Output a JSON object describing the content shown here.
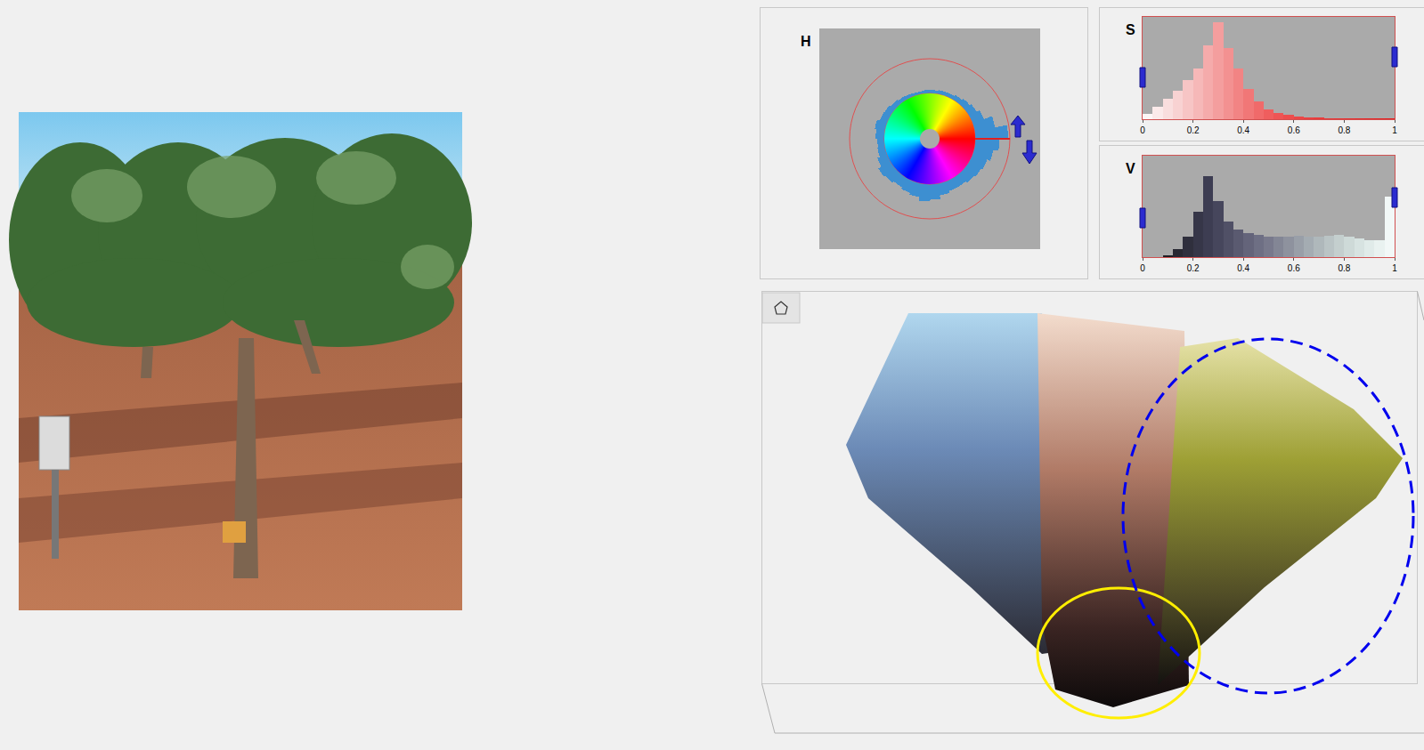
{
  "chart_data": [
    {
      "type": "polar_histogram",
      "title": "H",
      "bins": [
        0,
        10,
        20,
        30,
        40,
        50,
        60,
        70,
        80,
        90,
        100,
        110,
        120,
        130,
        140,
        150,
        160,
        170,
        180,
        190,
        200,
        210,
        220,
        230,
        240,
        250,
        260,
        270,
        280,
        290,
        300,
        310,
        320,
        330,
        340,
        350,
        360
      ],
      "counts": [
        0.95,
        0.6,
        0.35,
        0.25,
        0.2,
        0.15,
        0.12,
        0.12,
        0.1,
        0.1,
        0.08,
        0.1,
        0.12,
        0.15,
        0.2,
        0.22,
        0.3,
        0.25,
        0.2,
        0.22,
        0.3,
        0.4,
        0.35,
        0.3,
        0.35,
        0.4,
        0.5,
        0.45,
        0.35,
        0.3,
        0.3,
        0.35,
        0.4,
        0.45,
        0.55,
        0.7
      ],
      "color": "#3d8fd1",
      "rlim": [
        0,
        1
      ]
    },
    {
      "type": "histogram",
      "title": "S",
      "bins": [
        0,
        0.04,
        0.08,
        0.12,
        0.16,
        0.2,
        0.24,
        0.28,
        0.32,
        0.36,
        0.4,
        0.44,
        0.48,
        0.52,
        0.56,
        0.6,
        0.64,
        0.68,
        0.72,
        0.76,
        0.8,
        0.84,
        0.88,
        0.92,
        0.96,
        1
      ],
      "counts": [
        0.05,
        0.12,
        0.2,
        0.28,
        0.38,
        0.5,
        0.72,
        0.95,
        0.7,
        0.5,
        0.3,
        0.17,
        0.1,
        0.06,
        0.04,
        0.03,
        0.02,
        0.02,
        0.01,
        0.01,
        0.01,
        0.01,
        0.01,
        0.01,
        0.01
      ],
      "colors": [
        "#fdf7f7",
        "#fbeaea",
        "#f9dede",
        "#f8d2d2",
        "#f7c5c5",
        "#f6b8b8",
        "#f5abab",
        "#f49e9e",
        "#f39191",
        "#f28484",
        "#f17777",
        "#f06a6a",
        "#ef5e5e",
        "#ee5555",
        "#ed4d4d",
        "#ec4646",
        "#eb4040",
        "#ea3b3b",
        "#e93636",
        "#e83232",
        "#e72e2e",
        "#e62a2a",
        "#e52626",
        "#e42222",
        "#e31e1e"
      ],
      "xlim": [
        0,
        1
      ],
      "xticks": [
        0,
        0.2,
        0.4,
        0.6,
        0.8,
        1
      ],
      "ylim": [
        0,
        1
      ],
      "tick_labels": "x"
    },
    {
      "type": "histogram",
      "title": "V",
      "bins": [
        0,
        0.04,
        0.08,
        0.12,
        0.16,
        0.2,
        0.24,
        0.28,
        0.32,
        0.36,
        0.4,
        0.44,
        0.48,
        0.52,
        0.56,
        0.6,
        0.64,
        0.68,
        0.72,
        0.76,
        0.8,
        0.84,
        0.88,
        0.92,
        0.96,
        1
      ],
      "counts": [
        0,
        0,
        0.02,
        0.08,
        0.2,
        0.45,
        0.8,
        0.55,
        0.35,
        0.27,
        0.24,
        0.22,
        0.2,
        0.2,
        0.2,
        0.21,
        0.2,
        0.2,
        0.21,
        0.22,
        0.2,
        0.18,
        0.17,
        0.17,
        0.6
      ],
      "colors": [
        "#0a0a0c",
        "#141418",
        "#1e1e24",
        "#282832",
        "#2f2f3d",
        "#363648",
        "#3d3d52",
        "#46465c",
        "#505066",
        "#5a5a70",
        "#64647a",
        "#6e6f84",
        "#78798c",
        "#838695",
        "#8e929e",
        "#999fa8",
        "#a4acb2",
        "#afb8bb",
        "#bac4c5",
        "#c4cfce",
        "#cedad8",
        "#d7e3e1",
        "#e0ebe9",
        "#e9f2f0",
        "#f2f8f7"
      ],
      "xlim": [
        0,
        1
      ],
      "xticks": [
        0,
        0.2,
        0.4,
        0.6,
        0.8,
        1
      ],
      "ylim": [
        0,
        1
      ],
      "tick_labels": "x"
    }
  ]
}
